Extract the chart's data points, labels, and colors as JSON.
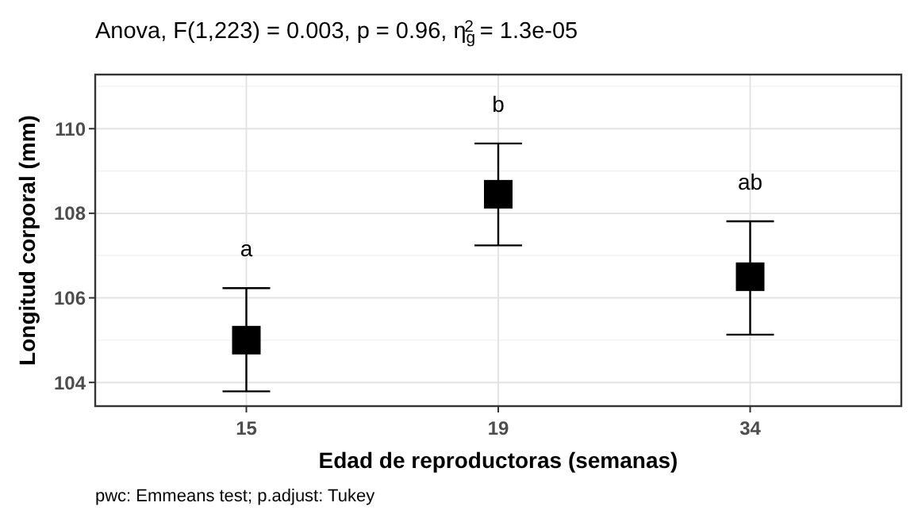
{
  "chart_data": {
    "type": "scatter",
    "title": "Anova, F(1,223) = 0.003, p = 0.96, η$_{g}$$^{2}$ = 1.3e-05",
    "xlabel": "Edad de reproductoras (semanas)",
    "ylabel": "Longitud corporal (mm)",
    "categories": [
      "15",
      "19",
      "34"
    ],
    "series": [
      {
        "color": "#000000",
        "values": [
          105.0,
          108.45,
          106.5
        ],
        "errors": [
          [
            103.79,
            106.23
          ],
          [
            107.24,
            109.65
          ],
          [
            105.13,
            107.81
          ]
        ]
      }
    ],
    "marker": "square",
    "grid": true,
    "ylim": [
      103.44,
      111.28
    ],
    "yticks": [
      104,
      106,
      108,
      110
    ],
    "annotations": [
      "a",
      "b",
      "ab",
      "pwc: Emmeans test; p.adjust: Tukey"
    ]
  }
}
